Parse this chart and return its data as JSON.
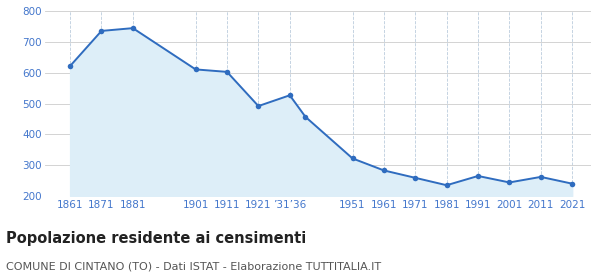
{
  "years": [
    1861,
    1871,
    1881,
    1901,
    1911,
    1921,
    1931,
    1936,
    1951,
    1961,
    1971,
    1981,
    1991,
    2001,
    2011,
    2021
  ],
  "population": [
    622,
    736,
    745,
    611,
    603,
    492,
    527,
    457,
    322,
    283,
    259,
    235,
    265,
    244,
    262,
    240
  ],
  "line_color": "#2f6cbf",
  "fill_color": "#ddeef8",
  "marker_color": "#2f6cbf",
  "background_color": "#ffffff",
  "grid_color_h": "#cccccc",
  "grid_color_v": "#bbccdd",
  "ylim": [
    200,
    800
  ],
  "yticks": [
    200,
    300,
    400,
    500,
    600,
    700,
    800
  ],
  "xlim_left": 1853,
  "xlim_right": 2027,
  "xtick_positions": [
    1861,
    1871,
    1881,
    1901,
    1911,
    1921,
    1931,
    1951,
    1961,
    1971,
    1981,
    1991,
    2001,
    2011,
    2021
  ],
  "xtick_labels": [
    "1861",
    "1871",
    "1881",
    "1901",
    "1911",
    "1921",
    "’31’36",
    "1951",
    "1961",
    "1971",
    "1981",
    "1991",
    "2001",
    "2011",
    "2021"
  ],
  "title": "Popolazione residente ai censimenti",
  "subtitle": "COMUNE DI CINTANO (TO) - Dati ISTAT - Elaborazione TUTTITALIA.IT",
  "title_fontsize": 10.5,
  "subtitle_fontsize": 8.0,
  "tick_label_color": "#4477cc",
  "tick_label_fontsize": 7.5,
  "title_color": "#222222",
  "subtitle_color": "#555555"
}
